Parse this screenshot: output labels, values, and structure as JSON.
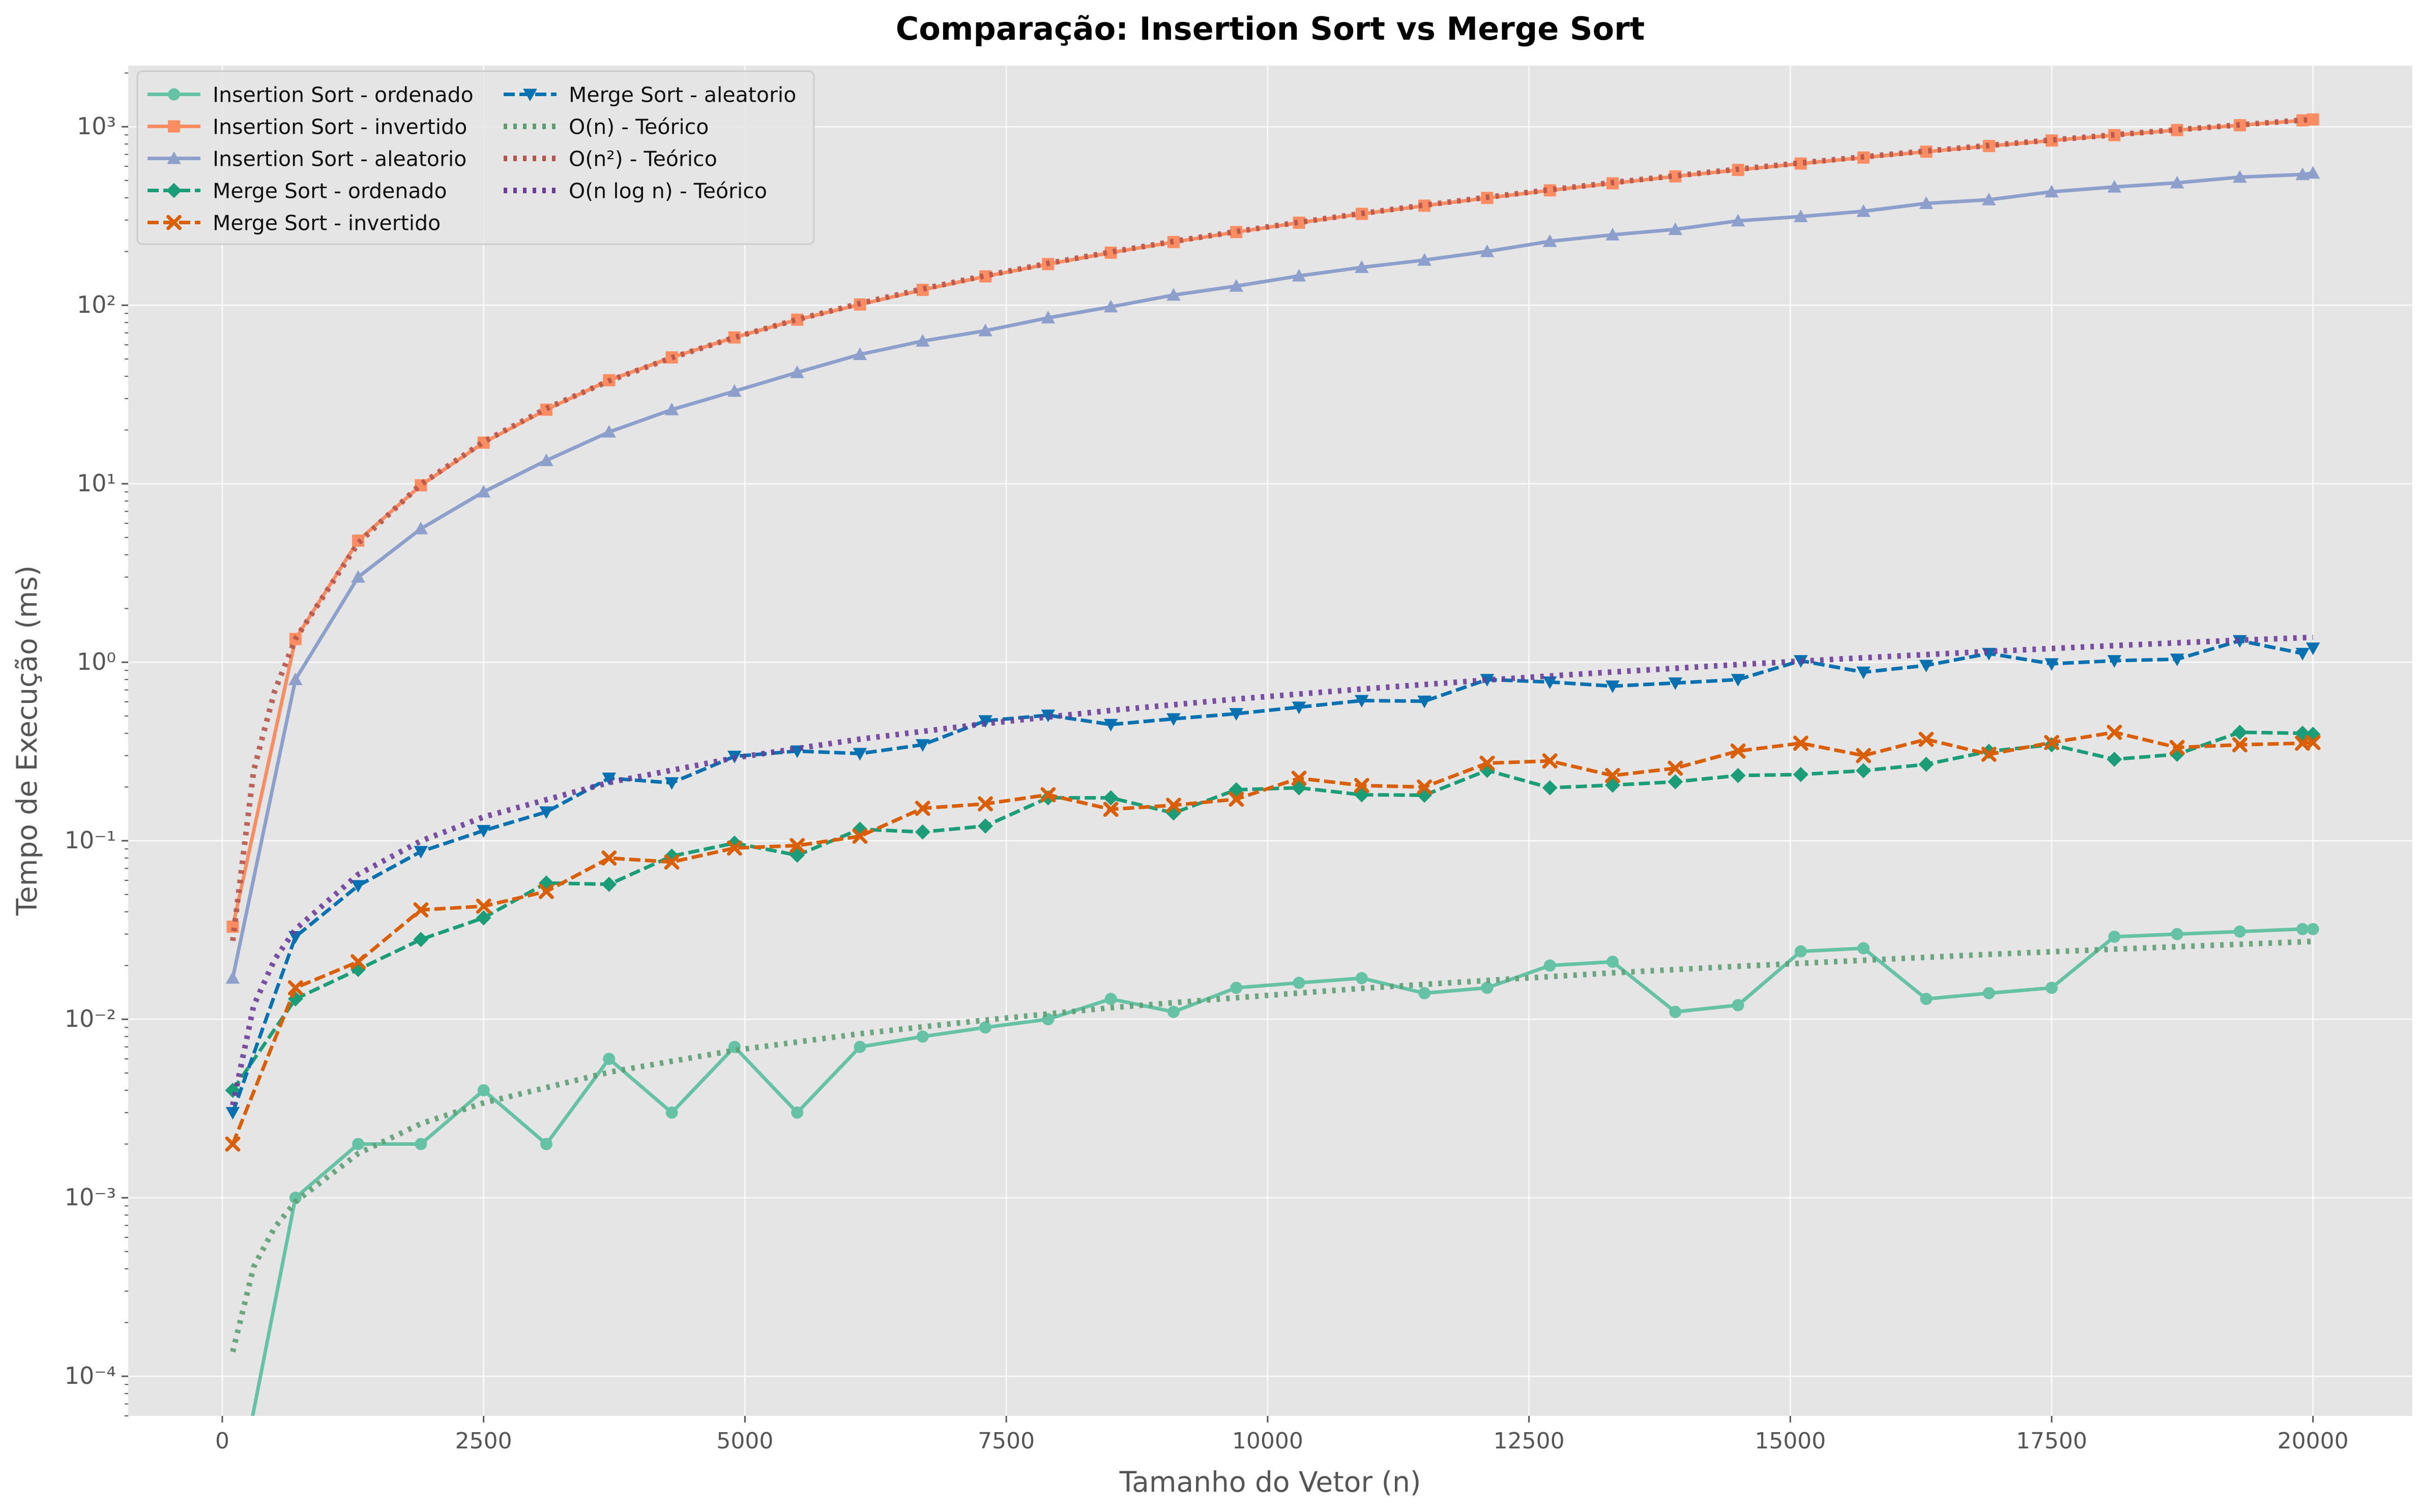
{
  "chart_data": {
    "type": "line",
    "title": "Comparação: Insertion Sort vs Merge Sort",
    "xlabel": "Tamanho do Vetor (n)",
    "ylabel": "Tempo de Execução (ms)",
    "xlim": [
      -900,
      20950
    ],
    "ylim": [
      6e-05,
      2200
    ],
    "yscale": "log",
    "x_ticks": [
      0,
      2500,
      5000,
      7500,
      10000,
      12500,
      15000,
      17500,
      20000
    ],
    "y_tick_exponents": [
      -4,
      -3,
      -2,
      -1,
      0,
      1,
      2,
      3
    ],
    "y_tick_labels": [
      "10⁻⁴",
      "10⁻³",
      "10⁻²",
      "10⁻¹",
      "10⁰",
      "10¹",
      "10²",
      "10³"
    ],
    "grid": true,
    "legend": "top-left",
    "x": [
      100,
      700,
      1300,
      1900,
      2500,
      3100,
      3700,
      4300,
      4900,
      5500,
      6100,
      6700,
      7300,
      7900,
      8500,
      9100,
      9700,
      10300,
      10900,
      11500,
      12100,
      12700,
      13300,
      13900,
      14500,
      15100,
      15700,
      16300,
      16900,
      17500,
      18100,
      18700,
      19300,
      19900,
      20000
    ],
    "series": [
      {
        "name": "Insertion Sort - ordenado",
        "color": "#66c2a5",
        "marker": "circle",
        "dash": "solid",
        "values": [
          0,
          0.001,
          0.002,
          0.002,
          0.004,
          0.002,
          0.006,
          0.003,
          0.007,
          0.003,
          0.007,
          0.008,
          0.009,
          0.01,
          0.013,
          0.011,
          0.015,
          0.016,
          0.017,
          0.014,
          0.015,
          0.02,
          0.021,
          0.011,
          0.012,
          0.024,
          0.025,
          0.013,
          0.014,
          0.015,
          0.029,
          0.03,
          0.031,
          0.032,
          0.032
        ]
      },
      {
        "name": "Insertion Sort - invertido",
        "color": "#fc8d62",
        "marker": "square",
        "dash": "solid",
        "values": [
          0.033,
          1.35,
          4.8,
          9.8,
          17,
          26,
          38,
          51,
          66,
          83,
          101,
          122,
          145,
          170,
          197,
          226,
          257,
          290,
          325,
          361,
          399,
          440,
          482,
          527,
          573,
          622,
          672,
          725,
          780,
          837,
          897,
          958,
          1020,
          1085,
          1098
        ]
      },
      {
        "name": "Insertion Sort - aleatorio",
        "color": "#8da0cb",
        "marker": "triangle-up",
        "dash": "solid",
        "values": [
          0.017,
          0.8,
          3.0,
          5.6,
          9.0,
          13.5,
          19.5,
          26,
          33,
          42,
          53,
          63,
          72,
          85,
          98,
          114,
          128,
          146,
          163,
          179,
          200,
          228,
          248,
          266,
          297,
          314,
          336,
          372,
          390,
          432,
          460,
          485,
          522,
          540,
          550
        ]
      },
      {
        "name": "Merge Sort - ordenado",
        "color": "#1b9e77",
        "marker": "diamond",
        "dash": "dashed",
        "values": [
          0.004,
          0.013,
          0.019,
          0.028,
          0.037,
          0.058,
          0.057,
          0.082,
          0.097,
          0.083,
          0.116,
          0.112,
          0.121,
          0.174,
          0.174,
          0.143,
          0.193,
          0.198,
          0.181,
          0.18,
          0.248,
          0.198,
          0.205,
          0.214,
          0.232,
          0.235,
          0.247,
          0.268,
          0.317,
          0.345,
          0.286,
          0.305,
          0.405,
          0.4,
          0.395
        ]
      },
      {
        "name": "Merge Sort - invertido",
        "color": "#d95f02",
        "marker": "x",
        "dash": "dashed",
        "values": [
          0.002,
          0.015,
          0.021,
          0.041,
          0.043,
          0.052,
          0.08,
          0.076,
          0.091,
          0.094,
          0.106,
          0.152,
          0.161,
          0.181,
          0.15,
          0.158,
          0.171,
          0.224,
          0.204,
          0.2,
          0.272,
          0.28,
          0.232,
          0.255,
          0.318,
          0.352,
          0.3,
          0.37,
          0.305,
          0.355,
          0.405,
          0.333,
          0.345,
          0.352,
          0.355
        ]
      },
      {
        "name": "Merge Sort - aleatorio",
        "color": "#0571b0",
        "marker": "triangle-down",
        "dash": "dashed",
        "values": [
          0.003,
          0.029,
          0.056,
          0.087,
          0.114,
          0.145,
          0.224,
          0.211,
          0.297,
          0.318,
          0.308,
          0.345,
          0.47,
          0.505,
          0.448,
          0.482,
          0.515,
          0.56,
          0.61,
          0.605,
          0.8,
          0.775,
          0.735,
          0.765,
          0.8,
          1.02,
          0.88,
          0.96,
          1.12,
          0.98,
          1.02,
          1.04,
          1.32,
          1.12,
          1.2
        ]
      },
      {
        "name": "O(n) - Teórico",
        "color": "#5e9e74",
        "marker": "none",
        "dash": "dotted",
        "x": [
          100,
          300,
          500,
          700,
          1300,
          1900,
          2500,
          3700,
          4900,
          6100,
          7300,
          8500,
          9700,
          10900,
          12100,
          13300,
          14500,
          15700,
          16900,
          18100,
          19300,
          20000
        ],
        "values": [
          0.000137,
          0.00041,
          0.00068,
          0.00095,
          0.00177,
          0.0026,
          0.0034,
          0.00505,
          0.0067,
          0.0083,
          0.0099,
          0.0116,
          0.0132,
          0.0149,
          0.0165,
          0.0182,
          0.0198,
          0.0214,
          0.0231,
          0.0247,
          0.0263,
          0.0273
        ]
      },
      {
        "name": "O(n²) - Teórico",
        "color": "#b5544a",
        "marker": "none",
        "dash": "dotted",
        "x": [
          100,
          300,
          500,
          700,
          1300,
          1900,
          2500,
          3100,
          3700,
          4300,
          4900,
          5500,
          6100,
          6700,
          7300,
          7900,
          8500,
          9100,
          9700,
          10300,
          10900,
          11500,
          12100,
          12700,
          13300,
          13900,
          14500,
          15100,
          15700,
          16300,
          16900,
          17500,
          18100,
          18700,
          19300,
          19900,
          20000
        ],
        "values": [
          0.0275,
          0.247,
          0.687,
          1.35,
          4.65,
          9.93,
          17.2,
          26.4,
          37.7,
          50.8,
          66,
          83.2,
          102.3,
          123.4,
          146.5,
          171.6,
          198.7,
          227.7,
          258.7,
          291.7,
          326.7,
          363.7,
          402.6,
          443.6,
          486.5,
          531.4,
          578.3,
          627.1,
          678,
          730.8,
          785.6,
          842.4,
          901.1,
          961.9,
          1024.6,
          1089.3,
          1100
        ]
      },
      {
        "name": "O(n log n) - Teórico",
        "color": "#6a3d9a",
        "marker": "none",
        "dash": "dotted",
        "x": [
          100,
          300,
          500,
          700,
          1300,
          1900,
          2500,
          3700,
          4900,
          6100,
          7300,
          8500,
          9700,
          10900,
          12100,
          13300,
          14500,
          15700,
          16900,
          18100,
          19300,
          20000
        ],
        "values": [
          0.0033,
          0.0119,
          0.0216,
          0.0319,
          0.0648,
          0.0998,
          0.136,
          0.212,
          0.291,
          0.371,
          0.453,
          0.537,
          0.622,
          0.708,
          0.795,
          0.882,
          0.971,
          1.06,
          1.15,
          1.24,
          1.33,
          1.38
        ]
      }
    ]
  }
}
